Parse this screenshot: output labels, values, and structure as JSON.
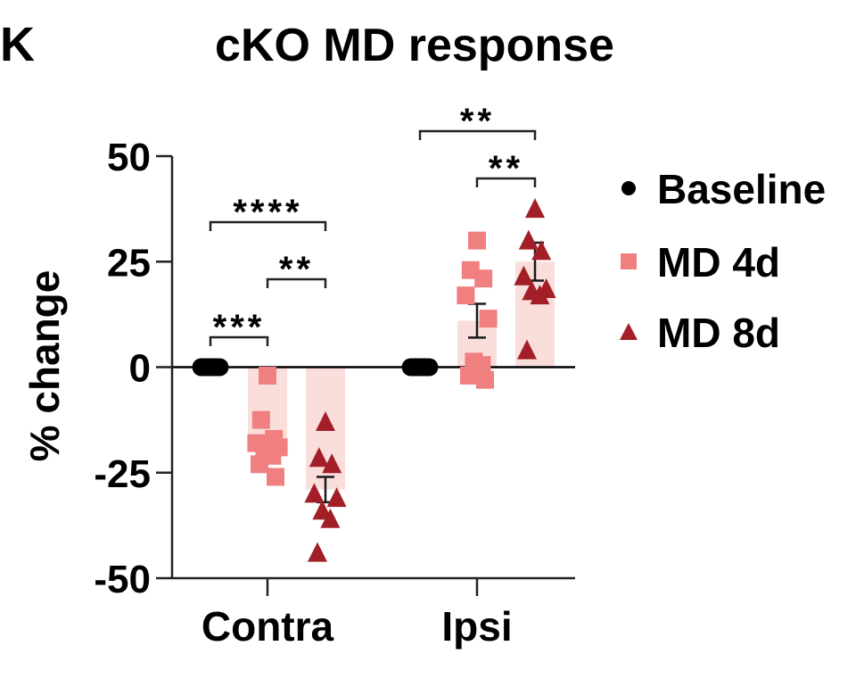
{
  "panel_label": "K",
  "chart_data": {
    "type": "bar",
    "title": "cKO MD response",
    "xlabel": "",
    "ylabel": "% change",
    "ylim": [
      -50,
      50
    ],
    "yticks": [
      50,
      25,
      0,
      -25,
      -50
    ],
    "ytick_labels": [
      "50",
      "25",
      "0",
      "-25",
      "-50"
    ],
    "categories": [
      "Contra",
      "Ipsi"
    ],
    "grid": false,
    "legend_position": "right",
    "series": [
      {
        "name": "Baseline",
        "marker": "circle",
        "color": "#000000",
        "bar_color": "#FADEDC",
        "means": [
          0,
          0
        ],
        "sem": [
          0,
          0
        ],
        "points": [
          [
            0,
            0,
            0,
            0,
            0,
            0,
            0,
            0,
            0
          ],
          [
            0,
            0,
            0,
            0,
            0,
            0,
            0,
            0,
            0
          ]
        ]
      },
      {
        "name": "MD 4d",
        "marker": "square",
        "color": "#F08080",
        "bar_color": "#FADEDC",
        "means": [
          -18,
          11
        ],
        "sem": [
          1.5,
          4
        ],
        "points": [
          [
            -2,
            -12.5,
            -17,
            -18,
            -19,
            -20,
            -21,
            -23,
            -26
          ],
          [
            30,
            23,
            21,
            17,
            11.5,
            1.3,
            0.5,
            -2,
            -3
          ]
        ]
      },
      {
        "name": "MD 8d",
        "marker": "triangle",
        "color": "#A31F27",
        "bar_color": "#FADEDC",
        "means": [
          -29,
          25
        ],
        "sem": [
          3,
          4.5
        ],
        "points": [
          [
            -13,
            -21.5,
            -23,
            -30,
            -31,
            -34,
            -36,
            -44
          ],
          [
            37.5,
            30,
            27.5,
            21.5,
            18.5,
            18,
            17,
            4
          ]
        ]
      }
    ],
    "significance": [
      {
        "category": "Contra",
        "from": "Baseline",
        "to": "MD 8d",
        "label": "****"
      },
      {
        "category": "Contra",
        "from": "MD 4d",
        "to": "MD 8d",
        "label": "**"
      },
      {
        "category": "Contra",
        "from": "Baseline",
        "to": "MD 4d",
        "label": "***"
      },
      {
        "category": "Ipsi",
        "from": "Baseline",
        "to": "MD 8d",
        "label": "**"
      },
      {
        "category": "Ipsi",
        "from": "MD 4d",
        "to": "MD 8d",
        "label": "**"
      }
    ]
  }
}
